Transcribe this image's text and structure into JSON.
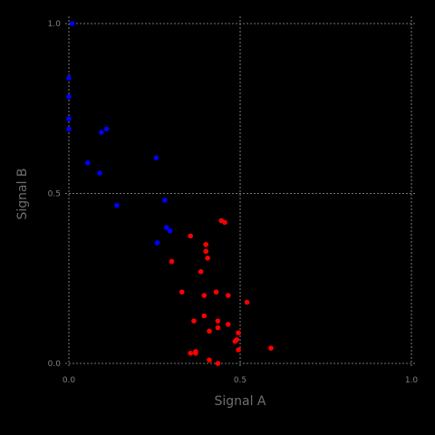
{
  "chart_data": {
    "type": "scatter",
    "xlabel": "Signal A",
    "ylabel": "Signal B",
    "xlim": [
      0.0,
      1.0
    ],
    "ylim": [
      0.0,
      1.0
    ],
    "x_ticks": [
      "0.0",
      "0.5",
      "1.0"
    ],
    "y_ticks": [
      "0.0",
      "0.5",
      "1.0"
    ],
    "grid": true,
    "series": [
      {
        "color": "#0000ff",
        "points": [
          [
            0.01,
            1.0
          ],
          [
            0.0,
            0.84
          ],
          [
            0.0,
            0.785
          ],
          [
            0.0,
            0.72
          ],
          [
            0.0,
            0.69
          ],
          [
            0.11,
            0.69
          ],
          [
            0.095,
            0.68
          ],
          [
            0.255,
            0.605
          ],
          [
            0.055,
            0.59
          ],
          [
            0.09,
            0.56
          ],
          [
            0.28,
            0.48
          ],
          [
            0.14,
            0.465
          ],
          [
            0.285,
            0.4
          ],
          [
            0.295,
            0.39
          ],
          [
            0.258,
            0.355
          ]
        ]
      },
      {
        "color": "#ff0000",
        "points": [
          [
            0.445,
            0.42
          ],
          [
            0.455,
            0.415
          ],
          [
            0.355,
            0.375
          ],
          [
            0.4,
            0.35
          ],
          [
            0.4,
            0.33
          ],
          [
            0.405,
            0.31
          ],
          [
            0.3,
            0.3
          ],
          [
            0.385,
            0.27
          ],
          [
            0.43,
            0.21
          ],
          [
            0.33,
            0.21
          ],
          [
            0.395,
            0.2
          ],
          [
            0.465,
            0.2
          ],
          [
            0.52,
            0.18
          ],
          [
            0.395,
            0.14
          ],
          [
            0.365,
            0.125
          ],
          [
            0.435,
            0.125
          ],
          [
            0.465,
            0.115
          ],
          [
            0.435,
            0.105
          ],
          [
            0.41,
            0.095
          ],
          [
            0.495,
            0.09
          ],
          [
            0.49,
            0.07
          ],
          [
            0.485,
            0.065
          ],
          [
            0.59,
            0.045
          ],
          [
            0.495,
            0.04
          ],
          [
            0.37,
            0.035
          ],
          [
            0.37,
            0.03
          ],
          [
            0.355,
            0.03
          ],
          [
            0.41,
            0.01
          ],
          [
            0.435,
            0.0
          ]
        ]
      }
    ]
  }
}
